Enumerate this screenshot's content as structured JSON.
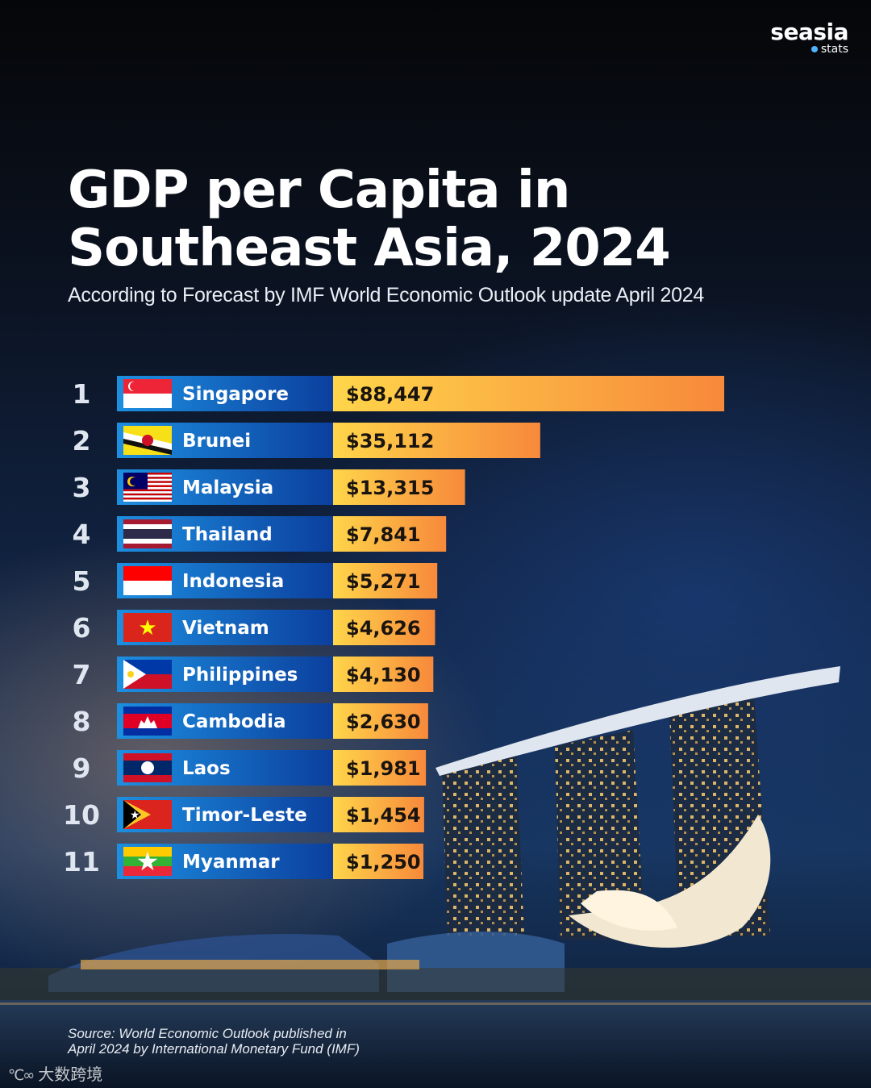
{
  "brand": {
    "name": "seasia",
    "sub": "stats"
  },
  "header": {
    "title_line1": "GDP per Capita in",
    "title_line2": "Southeast Asia, 2024",
    "subtitle": "According to Forecast by IMF World Economic Outlook update April 2024"
  },
  "chart_data": {
    "type": "bar",
    "orientation": "horizontal",
    "title": "GDP per Capita in Southeast Asia, 2024",
    "unit": "USD",
    "categories": [
      "Singapore",
      "Brunei",
      "Malaysia",
      "Thailand",
      "Indonesia",
      "Vietnam",
      "Philippines",
      "Cambodia",
      "Laos",
      "Timor-Leste",
      "Myanmar"
    ],
    "ranks": [
      "1",
      "2",
      "3",
      "4",
      "5",
      "6",
      "7",
      "8",
      "9",
      "10",
      "11"
    ],
    "values": [
      88447,
      35112,
      13315,
      7841,
      5271,
      4626,
      4130,
      2630,
      1981,
      1454,
      1250
    ],
    "value_labels": [
      "$88,447",
      "$35,112",
      "$13,315",
      "$7,841",
      "$5,271",
      "$4,626",
      "$4,130",
      "$2,630",
      "$1,981",
      "$1,454",
      "$1,250"
    ],
    "flags": [
      "singapore-flag-icon",
      "brunei-flag-icon",
      "malaysia-flag-icon",
      "thailand-flag-icon",
      "indonesia-flag-icon",
      "vietnam-flag-icon",
      "philippines-flag-icon",
      "cambodia-flag-icon",
      "laos-flag-icon",
      "timor-leste-flag-icon",
      "myanmar-flag-icon"
    ],
    "colors": {
      "label_bar_start": "#1d8fe0",
      "label_bar_end": "#0b3f9e",
      "value_bar_start": "#ffd54a",
      "value_bar_end": "#f7893b"
    }
  },
  "footer": {
    "source_line1": "Source: World Economic Outlook published in",
    "source_line2": "April 2024 by International Monetary Fund (IMF)",
    "watermark": "大数跨境"
  }
}
